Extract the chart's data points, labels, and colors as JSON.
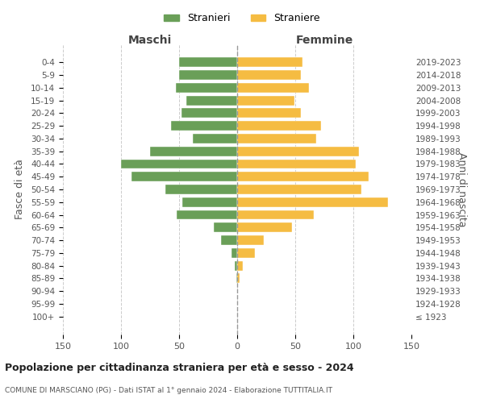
{
  "age_groups": [
    "100+",
    "95-99",
    "90-94",
    "85-89",
    "80-84",
    "75-79",
    "70-74",
    "65-69",
    "60-64",
    "55-59",
    "50-54",
    "45-49",
    "40-44",
    "35-39",
    "30-34",
    "25-29",
    "20-24",
    "15-19",
    "10-14",
    "5-9",
    "0-4"
  ],
  "birth_years": [
    "≤ 1923",
    "1924-1928",
    "1929-1933",
    "1934-1938",
    "1939-1943",
    "1944-1948",
    "1949-1953",
    "1954-1958",
    "1959-1963",
    "1964-1968",
    "1969-1973",
    "1974-1978",
    "1979-1983",
    "1984-1988",
    "1989-1993",
    "1994-1998",
    "1999-2003",
    "2004-2008",
    "2009-2013",
    "2014-2018",
    "2019-2023"
  ],
  "males": [
    0,
    0,
    0,
    1,
    2,
    5,
    14,
    20,
    52,
    47,
    62,
    91,
    100,
    75,
    38,
    57,
    48,
    44,
    53,
    50,
    50
  ],
  "females": [
    0,
    0,
    0,
    2,
    5,
    15,
    23,
    47,
    66,
    130,
    107,
    113,
    102,
    105,
    68,
    72,
    55,
    49,
    62,
    55,
    56
  ],
  "male_color": "#6a9f58",
  "female_color": "#f5bc42",
  "background_color": "#ffffff",
  "grid_color": "#cccccc",
  "title": "Popolazione per cittadinanza straniera per età e sesso - 2024",
  "subtitle": "COMUNE DI MARSCIANO (PG) - Dati ISTAT al 1° gennaio 2024 - Elaborazione TUTTITALIA.IT",
  "ylabel_left": "Fasce di età",
  "ylabel_right": "Anni di nascita",
  "xlabel_left": "Maschi",
  "xlabel_right": "Femmine",
  "legend_stranieri": "Stranieri",
  "legend_straniere": "Straniere",
  "xlim": 150
}
